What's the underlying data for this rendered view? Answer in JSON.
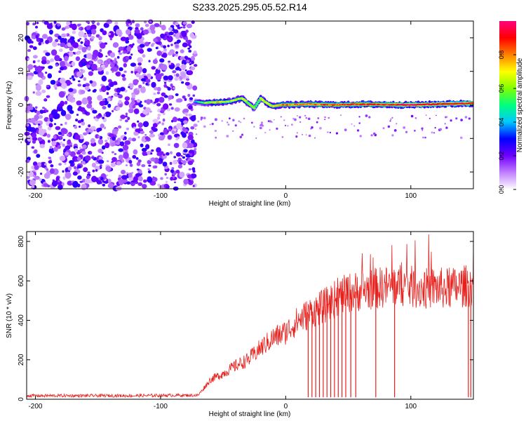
{
  "figure": {
    "title": "S233.2025.295.05.52.R14"
  },
  "chart_data": [
    {
      "type": "heatmap",
      "title": "S233.2025.295.05.52.R14",
      "xlabel": "Height of straight line (km)",
      "ylabel": "Frequency (Hz)",
      "xlim": [
        -207,
        150
      ],
      "ylim": [
        -25,
        25
      ],
      "x_ticks": [
        -200,
        -100,
        0,
        100
      ],
      "y_ticks": [
        -20,
        -10,
        0,
        10,
        20
      ],
      "colorbar": {
        "label": "Normalized spectral amplitude",
        "range": [
          0,
          1
        ],
        "ticks": [
          0.0,
          0.2,
          0.4,
          0.6,
          0.8
        ],
        "colormap": [
          "#ffffff",
          "#c080ff",
          "#7000ff",
          "#0000ff",
          "#00c8ff",
          "#00ff80",
          "#80ff00",
          "#ffff00",
          "#ff8000",
          "#ff0000",
          "#ff0080"
        ]
      },
      "noise_region_x": [
        -207,
        -72
      ],
      "signal_trace": {
        "x": [
          -72,
          -65,
          -55,
          -45,
          -35,
          -25,
          -20,
          -15,
          -10,
          -5,
          0,
          20,
          40,
          60,
          80,
          100,
          120,
          150
        ],
        "y": [
          1.0,
          0.6,
          0.8,
          1.0,
          2.0,
          -1.0,
          2.0,
          0.5,
          -0.5,
          0.0,
          0.0,
          0.2,
          0.0,
          0.2,
          0.1,
          0.0,
          0.2,
          0.5
        ],
        "amplitude": [
          0.35,
          0.55,
          0.75,
          0.6,
          0.65,
          0.55,
          0.6,
          0.65,
          0.7,
          0.75,
          0.8,
          0.8,
          0.85,
          0.85,
          0.85,
          0.95,
          0.9,
          0.9
        ]
      },
      "grid": false
    },
    {
      "type": "line",
      "xlabel": "Height of straight line (km)",
      "ylabel": "SNR (10 * v/v)",
      "xlim": [
        -207,
        150
      ],
      "ylim": [
        0,
        850
      ],
      "x_ticks": [
        -200,
        -100,
        0,
        100
      ],
      "y_ticks": [
        0,
        200,
        400,
        600,
        800
      ],
      "color": "#e8201c",
      "series": [
        {
          "x": [
            -207,
            -180,
            -150,
            -120,
            -90,
            -70,
            -65,
            -60,
            -50,
            -40,
            -30,
            -20,
            -10,
            0,
            10,
            20,
            30,
            40,
            50,
            60,
            70,
            80,
            90,
            100,
            110,
            120,
            130,
            140,
            150
          ],
          "values": [
            18,
            18,
            18,
            18,
            20,
            20,
            60,
            100,
            130,
            170,
            200,
            260,
            310,
            340,
            400,
            440,
            470,
            510,
            540,
            550,
            560,
            570,
            580,
            570,
            560,
            565,
            560,
            570,
            580
          ]
        }
      ],
      "dropouts_x": [
        18,
        21,
        24,
        27,
        30,
        33,
        36,
        39,
        42,
        45,
        48,
        52,
        56,
        72,
        87,
        146,
        148
      ],
      "grid": false
    }
  ]
}
